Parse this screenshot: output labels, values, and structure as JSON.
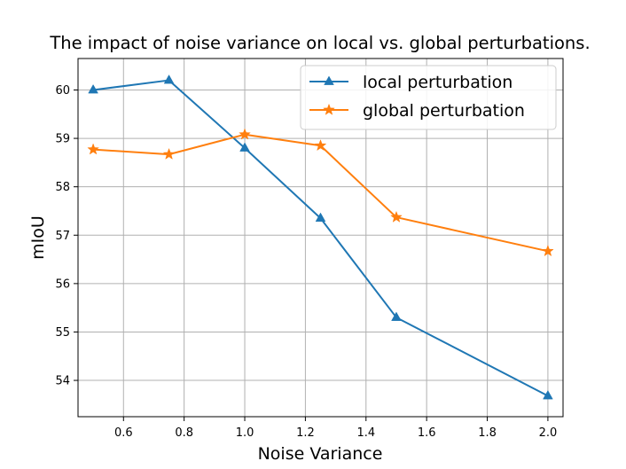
{
  "chart_data": {
    "type": "line",
    "title": "The impact of noise variance on local vs. global perturbations.",
    "xlabel": "Noise Variance",
    "ylabel": "mIoU",
    "x": [
      0.5,
      0.75,
      1.0,
      1.25,
      1.5,
      2.0
    ],
    "xlim": [
      0.45,
      2.05
    ],
    "ylim": [
      53.25,
      60.65
    ],
    "xticks": [
      0.6,
      0.8,
      1.0,
      1.2,
      1.4,
      1.6,
      1.8,
      2.0
    ],
    "xtick_labels": [
      "0.6",
      "0.8",
      "1.0",
      "1.2",
      "1.4",
      "1.6",
      "1.8",
      "2.0"
    ],
    "yticks": [
      54,
      55,
      56,
      57,
      58,
      59,
      60
    ],
    "ytick_labels": [
      "54",
      "55",
      "56",
      "57",
      "58",
      "59",
      "60"
    ],
    "grid": true,
    "legend_position": "top-right",
    "series": [
      {
        "name": "local perturbation",
        "color": "#1f77b4",
        "marker": "triangle",
        "values": [
          60.0,
          60.2,
          58.8,
          57.35,
          55.3,
          53.68
        ]
      },
      {
        "name": "global perturbation",
        "color": "#ff7f0e",
        "marker": "star",
        "values": [
          58.77,
          58.67,
          59.08,
          58.85,
          57.37,
          56.67
        ]
      }
    ]
  }
}
